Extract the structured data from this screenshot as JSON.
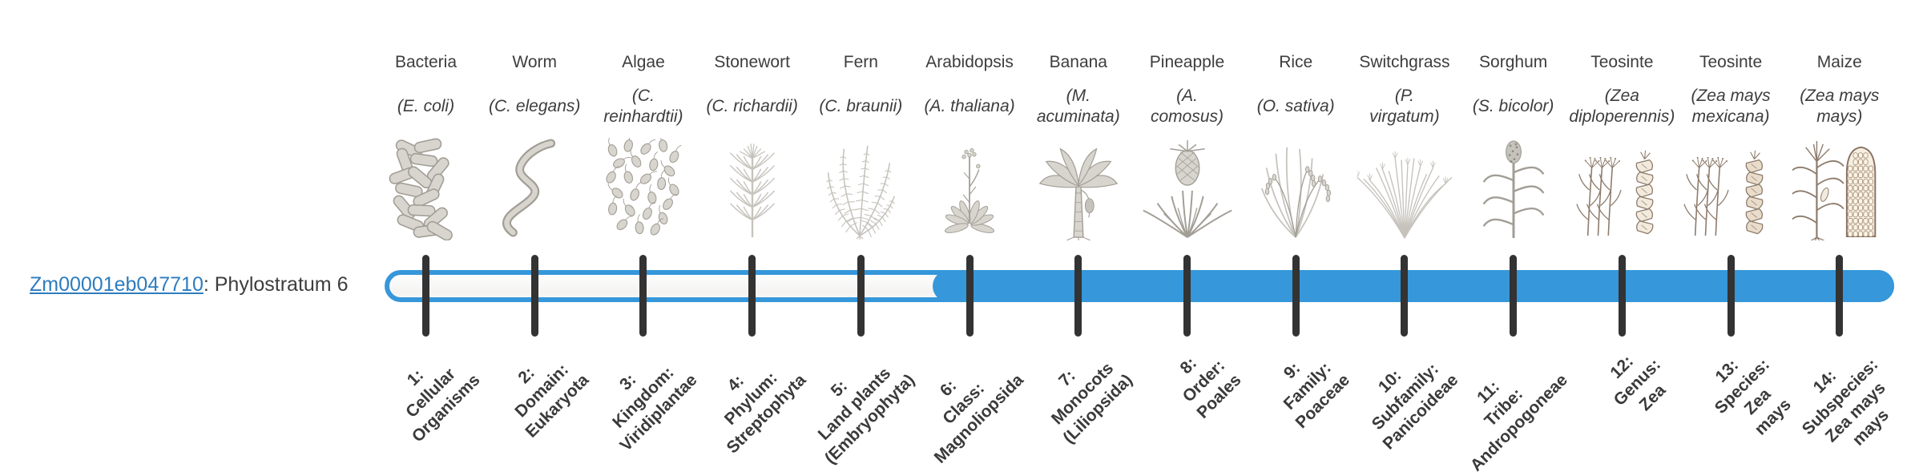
{
  "colors": {
    "accent_blue": "#3697da",
    "tick": "#333333",
    "text": "#3d3d3d",
    "link_blue": "#2d7cbf",
    "track_interior": "#f7f6f5"
  },
  "gene": {
    "id": "Zm00001eb047710",
    "phylostratum_text": ": Phylostratum 6",
    "phylostratum": 6
  },
  "figure": {
    "type": "phylostratum-timeline",
    "num_phylostrata": 14,
    "filled_from_stratum": 6,
    "taxa": [
      {
        "num": "1",
        "common": "Bacteria",
        "latin": "(E. coli)",
        "icon": "bacteria-icon",
        "stage": "1:\nCellular\nOrganisms",
        "highlighted": false
      },
      {
        "num": "2",
        "common": "Worm",
        "latin": "(C. elegans)",
        "icon": "worm-icon",
        "stage": "2:\nDomain:\nEukaryota",
        "highlighted": false
      },
      {
        "num": "3",
        "common": "Algae",
        "latin": "(C.\nreinhardtii)",
        "icon": "algae-icon",
        "stage": "3:\nKingdom:\nViridiplantae",
        "highlighted": false
      },
      {
        "num": "4",
        "common": "Stonewort",
        "latin": "(C. richardii)",
        "icon": "stonewort-icon",
        "stage": "4:\nPhylum:\nStreptophyta",
        "highlighted": false
      },
      {
        "num": "5",
        "common": "Fern",
        "latin": "(C. braunii)",
        "icon": "fern-icon",
        "stage": "5:\nLand plants\n(Embryophyta)",
        "highlighted": false
      },
      {
        "num": "6",
        "common": "Arabidopsis",
        "latin": "(A. thaliana)",
        "icon": "arabidopsis-icon",
        "stage": "6:\nClass:\nMagnoliopsida",
        "highlighted": true
      },
      {
        "num": "7",
        "common": "Banana",
        "latin": "(M.\nacuminata)",
        "icon": "banana-icon",
        "stage": "7:\nMonocots\n(Liliopsida)",
        "highlighted": true
      },
      {
        "num": "8",
        "common": "Pineapple",
        "latin": "(A.\ncomosus)",
        "icon": "pineapple-icon",
        "stage": "8:\nOrder:\nPoales",
        "highlighted": true
      },
      {
        "num": "9",
        "common": "Rice",
        "latin": "(O. sativa)",
        "icon": "rice-icon",
        "stage": "9:\nFamily:\nPoaceae",
        "highlighted": true
      },
      {
        "num": "10",
        "common": "Switchgrass",
        "latin": "(P.\nvirgatum)",
        "icon": "switchgrass-icon",
        "stage": "10:\nSubfamily:\nPanicoideae",
        "highlighted": true
      },
      {
        "num": "11",
        "common": "Sorghum",
        "latin": "(S. bicolor)",
        "icon": "sorghum-icon",
        "stage": "11:\nTribe:\nAndropogoneae",
        "highlighted": true
      },
      {
        "num": "12",
        "common": "Teosinte",
        "latin": "(Zea\ndiploperennis)",
        "icon": "teosinte-diploperennis-icon",
        "stage": "12:\nGenus:\nZea",
        "highlighted": true
      },
      {
        "num": "13",
        "common": "Teosinte",
        "latin": "(Zea mays\nmexicana)",
        "icon": "teosinte-mexicana-icon",
        "stage": "13:\nSpecies:\nZea\nmays",
        "highlighted": true
      },
      {
        "num": "14",
        "common": "Maize",
        "latin": "(Zea mays\nmays)",
        "icon": "maize-icon",
        "stage": "14:\nSubspecies:\nZea mays\nmays",
        "highlighted": true
      }
    ]
  }
}
